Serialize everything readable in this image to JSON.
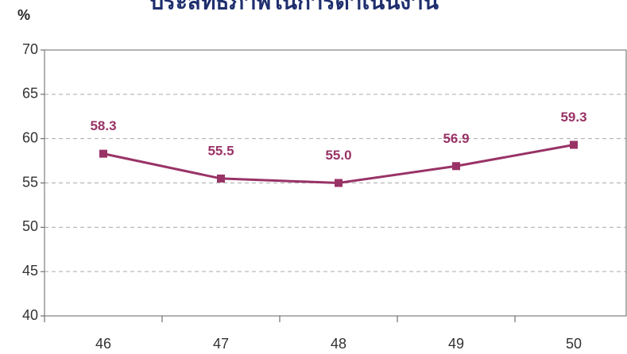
{
  "chart_data": {
    "type": "line",
    "title": "ประสิทธิภาพในการดำเนินงาน",
    "y_label": "%",
    "categories": [
      "46",
      "47",
      "48",
      "49",
      "50"
    ],
    "series": [
      {
        "name": "ประสิทธิภาพ",
        "color": "#993366",
        "values": [
          58.3,
          55.5,
          55.0,
          56.9,
          59.3
        ],
        "value_labels": [
          "58.3",
          "55.5",
          "55.0",
          "56.9",
          "59.3"
        ]
      }
    ],
    "ylim": [
      40,
      70
    ],
    "yticks": [
      40,
      45,
      50,
      55,
      60,
      65,
      70
    ],
    "grid": true,
    "legend": false
  }
}
